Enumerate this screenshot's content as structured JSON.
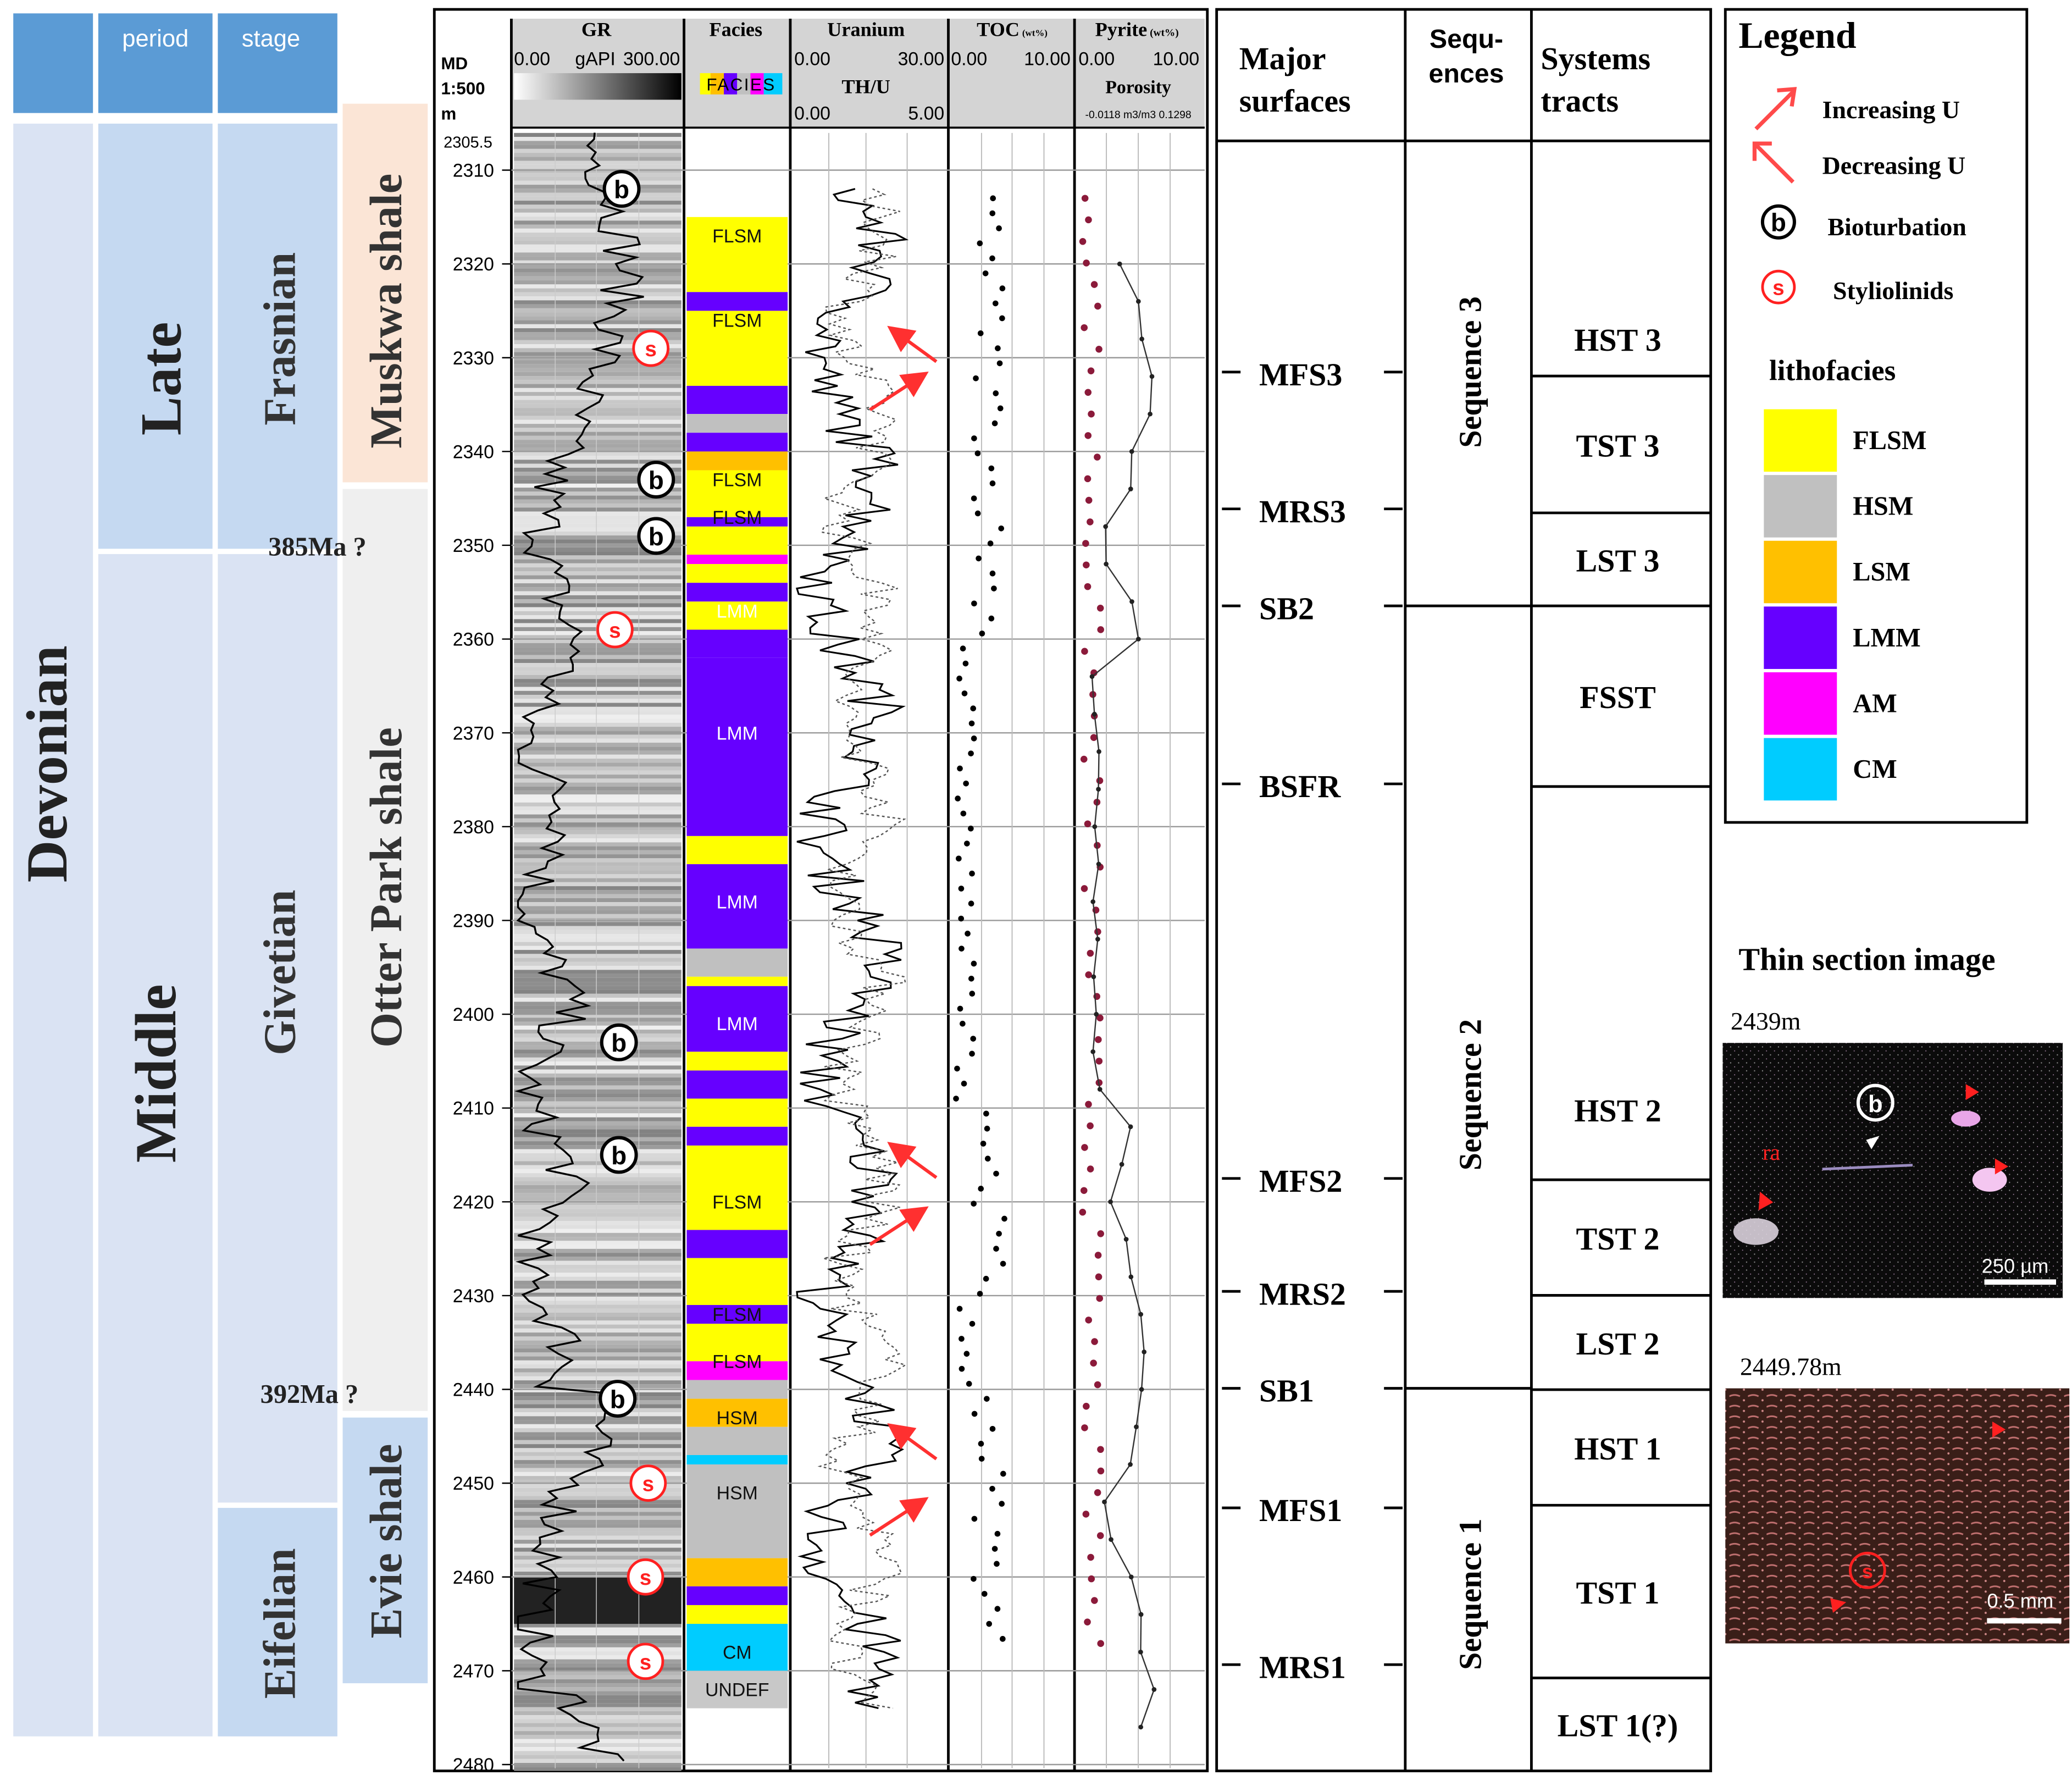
{
  "column_headers": {
    "period": "period",
    "stage": "stage"
  },
  "era": "Devonian",
  "periods": [
    "Late",
    "Middle"
  ],
  "stages": [
    "Frasnian",
    "Givetian",
    "Eifelian"
  ],
  "formations": [
    "Muskwa shale",
    "Otter Park shale",
    "Evie shale"
  ],
  "ages": [
    "385Ma ?",
    "392Ma ?"
  ],
  "log_headers": {
    "md": [
      "MD",
      "1:500",
      "m"
    ],
    "gr": {
      "title": "GR",
      "min": "0.00",
      "unit": "gAPI",
      "max": "300.00"
    },
    "facies": {
      "title": "Facies",
      "key": "FACIES"
    },
    "uranium": {
      "title": "Uranium",
      "min": "0.00",
      "max": "30.00",
      "sub": "TH/U",
      "sub_min": "0.00",
      "sub_max": "5.00"
    },
    "toc": {
      "title": "TOC",
      "unit": "(wt%)",
      "min": "0.00",
      "max": "10.00"
    },
    "pyrite": {
      "title": "Pyrite",
      "unit": "(wt%)",
      "min": "0.00",
      "max": "10.00",
      "sub": "Porosity",
      "sub_range": "-0.0118 m3/m3 0.1298"
    }
  },
  "depth_axis": {
    "top_label": "2305.5",
    "ticks": [
      2310,
      2320,
      2330,
      2340,
      2350,
      2360,
      2370,
      2380,
      2390,
      2400,
      2410,
      2420,
      2430,
      2440,
      2450,
      2460,
      2470,
      2480
    ]
  },
  "facies_labels": [
    "FLSM",
    "FLSM",
    "FLSM",
    "FLSM",
    "LMM",
    "LMM",
    "LMM",
    "LMM",
    "FLSM",
    "FLSM",
    "FLSM",
    "HSM",
    "HSM",
    "CM",
    "UNDEF"
  ],
  "surfaces_header": [
    "Major",
    "surfaces"
  ],
  "sequences_header": [
    "Sequ-",
    "ences"
  ],
  "tracts_header": [
    "Systems",
    "tracts"
  ],
  "surfaces": [
    "MFS3",
    "MRS3",
    "SB2",
    "BSFR",
    "MFS2",
    "MRS2",
    "SB1",
    "MFS1",
    "MRS1"
  ],
  "sequences": [
    "Sequence 3",
    "Sequence 2",
    "Sequence 1"
  ],
  "tracts": [
    "HST 3",
    "TST 3",
    "LST 3",
    "FSST",
    "HST 2",
    "TST 2",
    "LST 2",
    "HST 1",
    "TST 1",
    "LST 1(?)"
  ],
  "legend": {
    "title": "Legend",
    "symbols": [
      "Increasing U",
      "Decreasing U",
      "Bioturbation",
      "Styliolinids"
    ],
    "lithofacies_title": "lithofacies",
    "lithofacies": [
      {
        "label": "FLSM",
        "color": "#ffff00"
      },
      {
        "label": "HSM",
        "color": "#c0c0c0"
      },
      {
        "label": "LSM",
        "color": "#ffc000"
      },
      {
        "label": "LMM",
        "color": "#6600ff"
      },
      {
        "label": "AM",
        "color": "#ff00ff"
      },
      {
        "label": "CM",
        "color": "#00ccff"
      }
    ]
  },
  "thin_sections": {
    "title": "Thin section image",
    "images": [
      {
        "depth": "2439m",
        "scale": "250 µm"
      },
      {
        "depth": "2449.78m",
        "scale": "0.5 mm"
      }
    ]
  },
  "marker_glyphs": {
    "bioturbation": "b",
    "styliolinid": "s",
    "ra": "ra"
  },
  "colors": {
    "blue_box": "#5b9bd5",
    "light_blue": "#dae3f3",
    "salmon": "#fbe5d6",
    "gray_box": "#efefef",
    "light_blue2": "#c5d9f1",
    "arrow_red": "#ff2020",
    "pyrite_dot": "#8b1a3a"
  }
}
